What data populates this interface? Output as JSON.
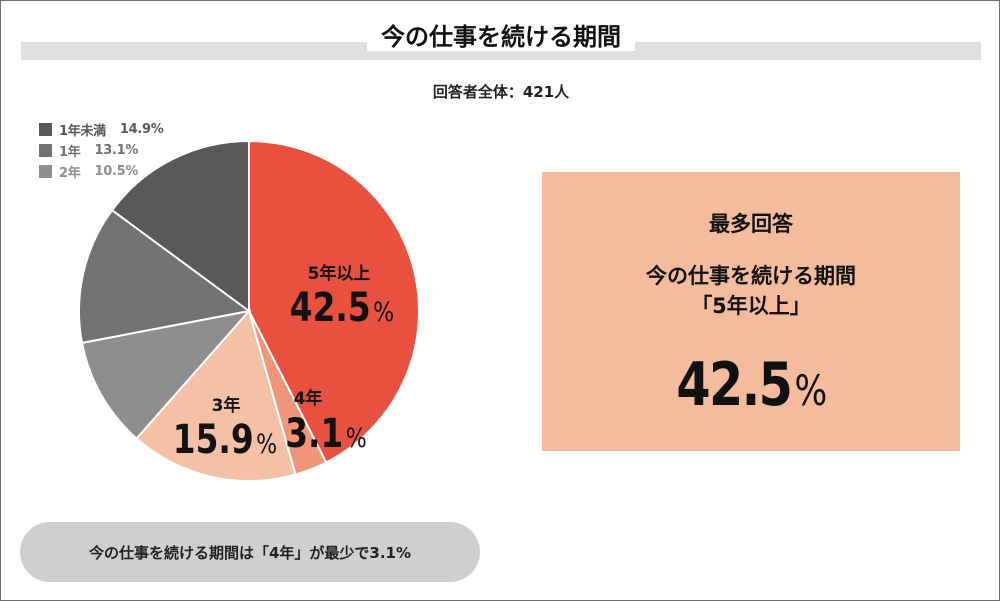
{
  "title": "今の仕事を続ける期間",
  "respondents": "回答者全体：421人",
  "chart_data": {
    "type": "pie",
    "title": "今の仕事を続ける期間",
    "respondents": 421,
    "unit": "%",
    "slices": [
      {
        "label": "5年以上",
        "value": 42.5,
        "color": "#e8503f",
        "labeled": true
      },
      {
        "label": "4年",
        "value": 3.1,
        "color": "#f0957a",
        "labeled": true
      },
      {
        "label": "3年",
        "value": 15.9,
        "color": "#f4c0a6",
        "labeled": true
      },
      {
        "label": "2年",
        "value": 10.5,
        "color": "#8e8e8e",
        "labeled": false
      },
      {
        "label": "1年",
        "value": 13.1,
        "color": "#727272",
        "labeled": false
      },
      {
        "label": "1年未満",
        "value": 14.9,
        "color": "#595959",
        "labeled": false
      }
    ],
    "legend": [
      {
        "label": "1年未満",
        "pct": "14.9%",
        "color": "#595959"
      },
      {
        "label": "1年",
        "pct": "13.1%",
        "color": "#727272"
      },
      {
        "label": "2年",
        "pct": "10.5%",
        "color": "#8e8e8e"
      }
    ],
    "legend_placement": "top-left"
  },
  "highlight": {
    "heading": "最多回答",
    "title": "今の仕事を続ける期間",
    "category": "「5年以上」",
    "value": "42.5",
    "unit": "%"
  },
  "summary": "今の仕事を続ける期間は「4年」が最少で3.1%"
}
